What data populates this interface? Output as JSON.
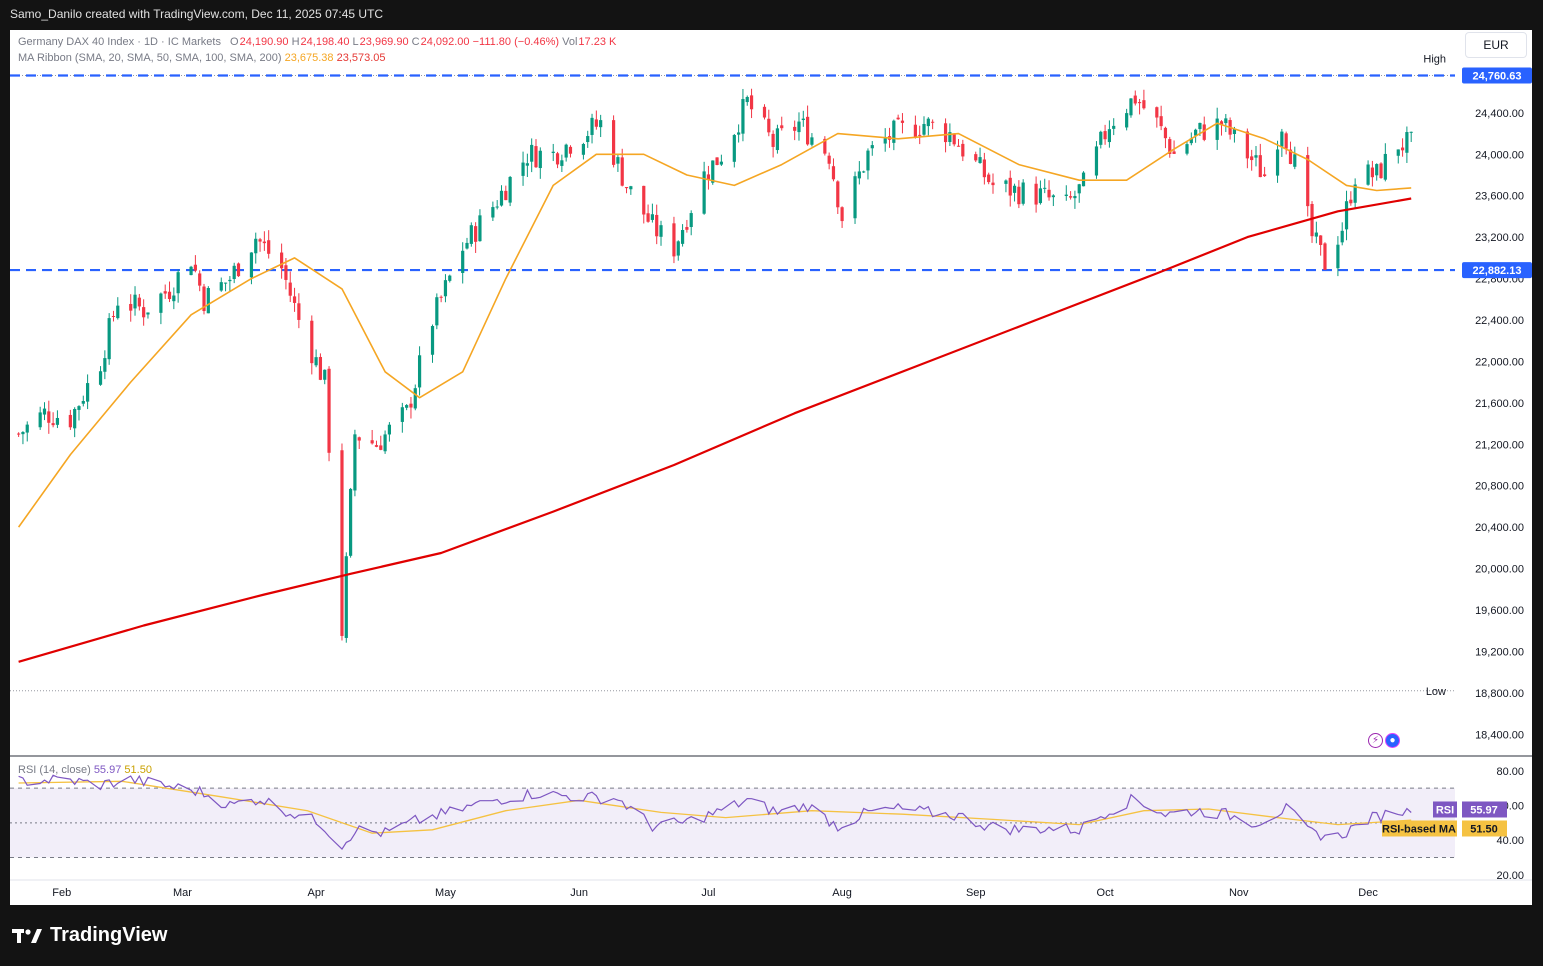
{
  "header": {
    "author_line": "Samo_Danilo created with TradingView.com, Dec 11, 2025 07:45 UTC"
  },
  "legend": {
    "symbol": "Germany DAX 40 Index · 1D · IC Markets",
    "o_label": "O",
    "o_value": "24,190.90",
    "h_label": "H",
    "h_value": "24,198.40",
    "l_label": "L",
    "l_value": "23,969.90",
    "c_label": "C",
    "c_value": "24,092.00",
    "change": "−111.80 (−0.46%)",
    "vol_label": "Vol",
    "vol_value": "17.23 K",
    "ma_name": "MA Ribbon (SMA, 20, SMA, 50, SMA, 100, SMA, 200)",
    "ma_value_1": "23,675.38",
    "ma_value_2": "23,573.05"
  },
  "rsi_legend": {
    "name": "RSI (14, close)",
    "rsi_value": "55.97",
    "ma_value": "51.50"
  },
  "currency": "EUR",
  "footer": {
    "brand": "TradingView"
  },
  "colors": {
    "up": "#089981",
    "down": "#f23645",
    "sma20": "#f5a623",
    "sma200": "#e00000",
    "level": "#2962ff",
    "rsi": "#7e57c2",
    "rsi_ma": "#f5c242"
  },
  "icons": [
    "tradingview-logo-icon",
    "lightning-icon",
    "globe-icon"
  ],
  "chart_data": [
    {
      "type": "candlestick",
      "title": "Germany DAX 40 Index · 1D · IC Markets",
      "ylim": [
        18200,
        25200
      ],
      "y_ticks": [
        "24,400.00",
        "24,000.00",
        "23,600.00",
        "23,200.00",
        "22,800.00",
        "22,400.00",
        "22,000.00",
        "21,600.00",
        "21,200.00",
        "20,800.00",
        "20,400.00",
        "20,000.00",
        "19,600.00",
        "19,200.00",
        "18,800.00",
        "18,400.00"
      ],
      "x_labels": [
        "Feb",
        "Mar",
        "Apr",
        "May",
        "Jun",
        "Jul",
        "Aug",
        "Sep",
        "Oct",
        "Nov",
        "Dec"
      ],
      "high_label": "High",
      "low_label": "Low",
      "high_value": 24760.63,
      "low_value": 18820,
      "levels": [
        {
          "value": 24760.63,
          "label": "24,760.63"
        },
        {
          "value": 22882.13,
          "label": "22,882.13"
        }
      ],
      "close_path": [
        [
          "2025-01-22",
          21300
        ],
        [
          "2025-01-28",
          21500
        ],
        [
          "2025-02-03",
          21450
        ],
        [
          "2025-02-10",
          22000
        ],
        [
          "2025-02-14",
          22600
        ],
        [
          "2025-02-20",
          22500
        ],
        [
          "2025-02-26",
          22700
        ],
        [
          "2025-03-03",
          23000
        ],
        [
          "2025-03-06",
          22600
        ],
        [
          "2025-03-12",
          22800
        ],
        [
          "2025-03-18",
          23200
        ],
        [
          "2025-03-24",
          22900
        ],
        [
          "2025-03-28",
          22400
        ],
        [
          "2025-04-03",
          21800
        ],
        [
          "2025-04-07",
          19400
        ],
        [
          "2025-04-10",
          21300
        ],
        [
          "2025-04-15",
          21200
        ],
        [
          "2025-04-22",
          21500
        ],
        [
          "2025-04-28",
          22400
        ],
        [
          "2025-05-05",
          23100
        ],
        [
          "2025-05-12",
          23500
        ],
        [
          "2025-05-20",
          24000
        ],
        [
          "2025-05-26",
          24000
        ],
        [
          "2025-06-02",
          24200
        ],
        [
          "2025-06-06",
          24300
        ],
        [
          "2025-06-12",
          23700
        ],
        [
          "2025-06-18",
          23300
        ],
        [
          "2025-06-23",
          23100
        ],
        [
          "2025-06-30",
          23800
        ],
        [
          "2025-07-04",
          24000
        ],
        [
          "2025-07-10",
          24500
        ],
        [
          "2025-07-16",
          24100
        ],
        [
          "2025-07-22",
          24300
        ],
        [
          "2025-07-29",
          24000
        ],
        [
          "2025-08-01",
          23400
        ],
        [
          "2025-08-07",
          24000
        ],
        [
          "2025-08-13",
          24200
        ],
        [
          "2025-08-20",
          24300
        ],
        [
          "2025-08-26",
          24200
        ],
        [
          "2025-09-01",
          23900
        ],
        [
          "2025-09-05",
          23700
        ],
        [
          "2025-09-10",
          23650
        ],
        [
          "2025-09-16",
          23600
        ],
        [
          "2025-09-22",
          23500
        ],
        [
          "2025-09-26",
          23700
        ],
        [
          "2025-10-02",
          24300
        ],
        [
          "2025-10-08",
          24550
        ],
        [
          "2025-10-13",
          24300
        ],
        [
          "2025-10-17",
          24000
        ],
        [
          "2025-10-22",
          24200
        ],
        [
          "2025-10-28",
          24300
        ],
        [
          "2025-11-03",
          24000
        ],
        [
          "2025-11-07",
          23800
        ],
        [
          "2025-11-11",
          24300
        ],
        [
          "2025-11-14",
          23900
        ],
        [
          "2025-11-18",
          23200
        ],
        [
          "2025-11-21",
          22950
        ],
        [
          "2025-11-25",
          23300
        ],
        [
          "2025-11-28",
          23800
        ],
        [
          "2025-12-03",
          23800
        ],
        [
          "2025-12-08",
          24100
        ],
        [
          "2025-12-11",
          24092
        ]
      ],
      "sma20_path": [
        [
          "2025-01-22",
          20400
        ],
        [
          "2025-02-03",
          21100
        ],
        [
          "2025-02-17",
          21800
        ],
        [
          "2025-03-03",
          22450
        ],
        [
          "2025-03-17",
          22800
        ],
        [
          "2025-03-27",
          23000
        ],
        [
          "2025-04-07",
          22700
        ],
        [
          "2025-04-17",
          21900
        ],
        [
          "2025-04-25",
          21650
        ],
        [
          "2025-05-05",
          21900
        ],
        [
          "2025-05-15",
          22800
        ],
        [
          "2025-05-26",
          23700
        ],
        [
          "2025-06-05",
          24000
        ],
        [
          "2025-06-16",
          24000
        ],
        [
          "2025-06-26",
          23800
        ],
        [
          "2025-07-07",
          23700
        ],
        [
          "2025-07-18",
          23900
        ],
        [
          "2025-07-31",
          24200
        ],
        [
          "2025-08-14",
          24150
        ],
        [
          "2025-08-28",
          24200
        ],
        [
          "2025-09-11",
          23900
        ],
        [
          "2025-09-25",
          23750
        ],
        [
          "2025-10-06",
          23750
        ],
        [
          "2025-10-17",
          24050
        ],
        [
          "2025-10-27",
          24300
        ],
        [
          "2025-11-07",
          24150
        ],
        [
          "2025-11-17",
          23950
        ],
        [
          "2025-11-26",
          23700
        ],
        [
          "2025-12-03",
          23650
        ],
        [
          "2025-12-11",
          23675
        ]
      ],
      "sma200_path": [
        [
          "2025-01-22",
          19100
        ],
        [
          "2025-02-20",
          19450
        ],
        [
          "2025-03-20",
          19750
        ],
        [
          "2025-04-09",
          19950
        ],
        [
          "2025-04-30",
          20150
        ],
        [
          "2025-05-26",
          20550
        ],
        [
          "2025-06-23",
          21000
        ],
        [
          "2025-07-21",
          21500
        ],
        [
          "2025-08-18",
          21950
        ],
        [
          "2025-09-15",
          22400
        ],
        [
          "2025-10-13",
          22850
        ],
        [
          "2025-11-03",
          23200
        ],
        [
          "2025-11-24",
          23450
        ],
        [
          "2025-12-11",
          23573
        ]
      ]
    },
    {
      "type": "line",
      "title": "RSI (14, close)",
      "ylim": [
        17,
        88
      ],
      "y_ticks": [
        "80.00",
        "60.00",
        "40.00",
        "20.00"
      ],
      "bands": [
        70,
        50,
        30
      ],
      "series": [
        {
          "name": "RSI",
          "label": "55.97",
          "values": [
            [
              "2025-01-22",
              74
            ],
            [
              "2025-02-01",
              75
            ],
            [
              "2025-02-10",
              72
            ],
            [
              "2025-02-17",
              75
            ],
            [
              "2025-02-26",
              71
            ],
            [
              "2025-03-05",
              68
            ],
            [
              "2025-03-12",
              60
            ],
            [
              "2025-03-19",
              64
            ],
            [
              "2025-03-26",
              56
            ],
            [
              "2025-04-02",
              50
            ],
            [
              "2025-04-07",
              37
            ],
            [
              "2025-04-10",
              46
            ],
            [
              "2025-04-17",
              44
            ],
            [
              "2025-04-24",
              51
            ],
            [
              "2025-05-02",
              56
            ],
            [
              "2025-05-12",
              63
            ],
            [
              "2025-05-22",
              67
            ],
            [
              "2025-06-01",
              65
            ],
            [
              "2025-06-10",
              64
            ],
            [
              "2025-06-18",
              48
            ],
            [
              "2025-06-25",
              50
            ],
            [
              "2025-07-03",
              56
            ],
            [
              "2025-07-10",
              63
            ],
            [
              "2025-07-17",
              56
            ],
            [
              "2025-07-24",
              60
            ],
            [
              "2025-07-31",
              48
            ],
            [
              "2025-08-07",
              56
            ],
            [
              "2025-08-14",
              58
            ],
            [
              "2025-08-21",
              56
            ],
            [
              "2025-08-28",
              54
            ],
            [
              "2025-09-04",
              48
            ],
            [
              "2025-09-11",
              46
            ],
            [
              "2025-09-18",
              47
            ],
            [
              "2025-09-25",
              46
            ],
            [
              "2025-10-01",
              56
            ],
            [
              "2025-10-08",
              64
            ],
            [
              "2025-10-15",
              55
            ],
            [
              "2025-10-22",
              57
            ],
            [
              "2025-10-29",
              55
            ],
            [
              "2025-11-05",
              50
            ],
            [
              "2025-11-12",
              58
            ],
            [
              "2025-11-18",
              44
            ],
            [
              "2025-11-24",
              42
            ],
            [
              "2025-12-01",
              52
            ],
            [
              "2025-12-08",
              57
            ],
            [
              "2025-12-11",
              55.97
            ]
          ]
        },
        {
          "name": "RSI-based MA",
          "label": "51.50",
          "values": [
            [
              "2025-01-22",
              73
            ],
            [
              "2025-02-15",
              74
            ],
            [
              "2025-03-10",
              65
            ],
            [
              "2025-03-30",
              57
            ],
            [
              "2025-04-14",
              44
            ],
            [
              "2025-04-28",
              46
            ],
            [
              "2025-05-15",
              57
            ],
            [
              "2025-06-01",
              63
            ],
            [
              "2025-06-20",
              56
            ],
            [
              "2025-07-05",
              53
            ],
            [
              "2025-07-25",
              57
            ],
            [
              "2025-08-15",
              55
            ],
            [
              "2025-09-05",
              52
            ],
            [
              "2025-09-25",
              49
            ],
            [
              "2025-10-10",
              57
            ],
            [
              "2025-10-25",
              58
            ],
            [
              "2025-11-10",
              53
            ],
            [
              "2025-11-24",
              49
            ],
            [
              "2025-12-11",
              51.5
            ]
          ]
        }
      ]
    }
  ]
}
